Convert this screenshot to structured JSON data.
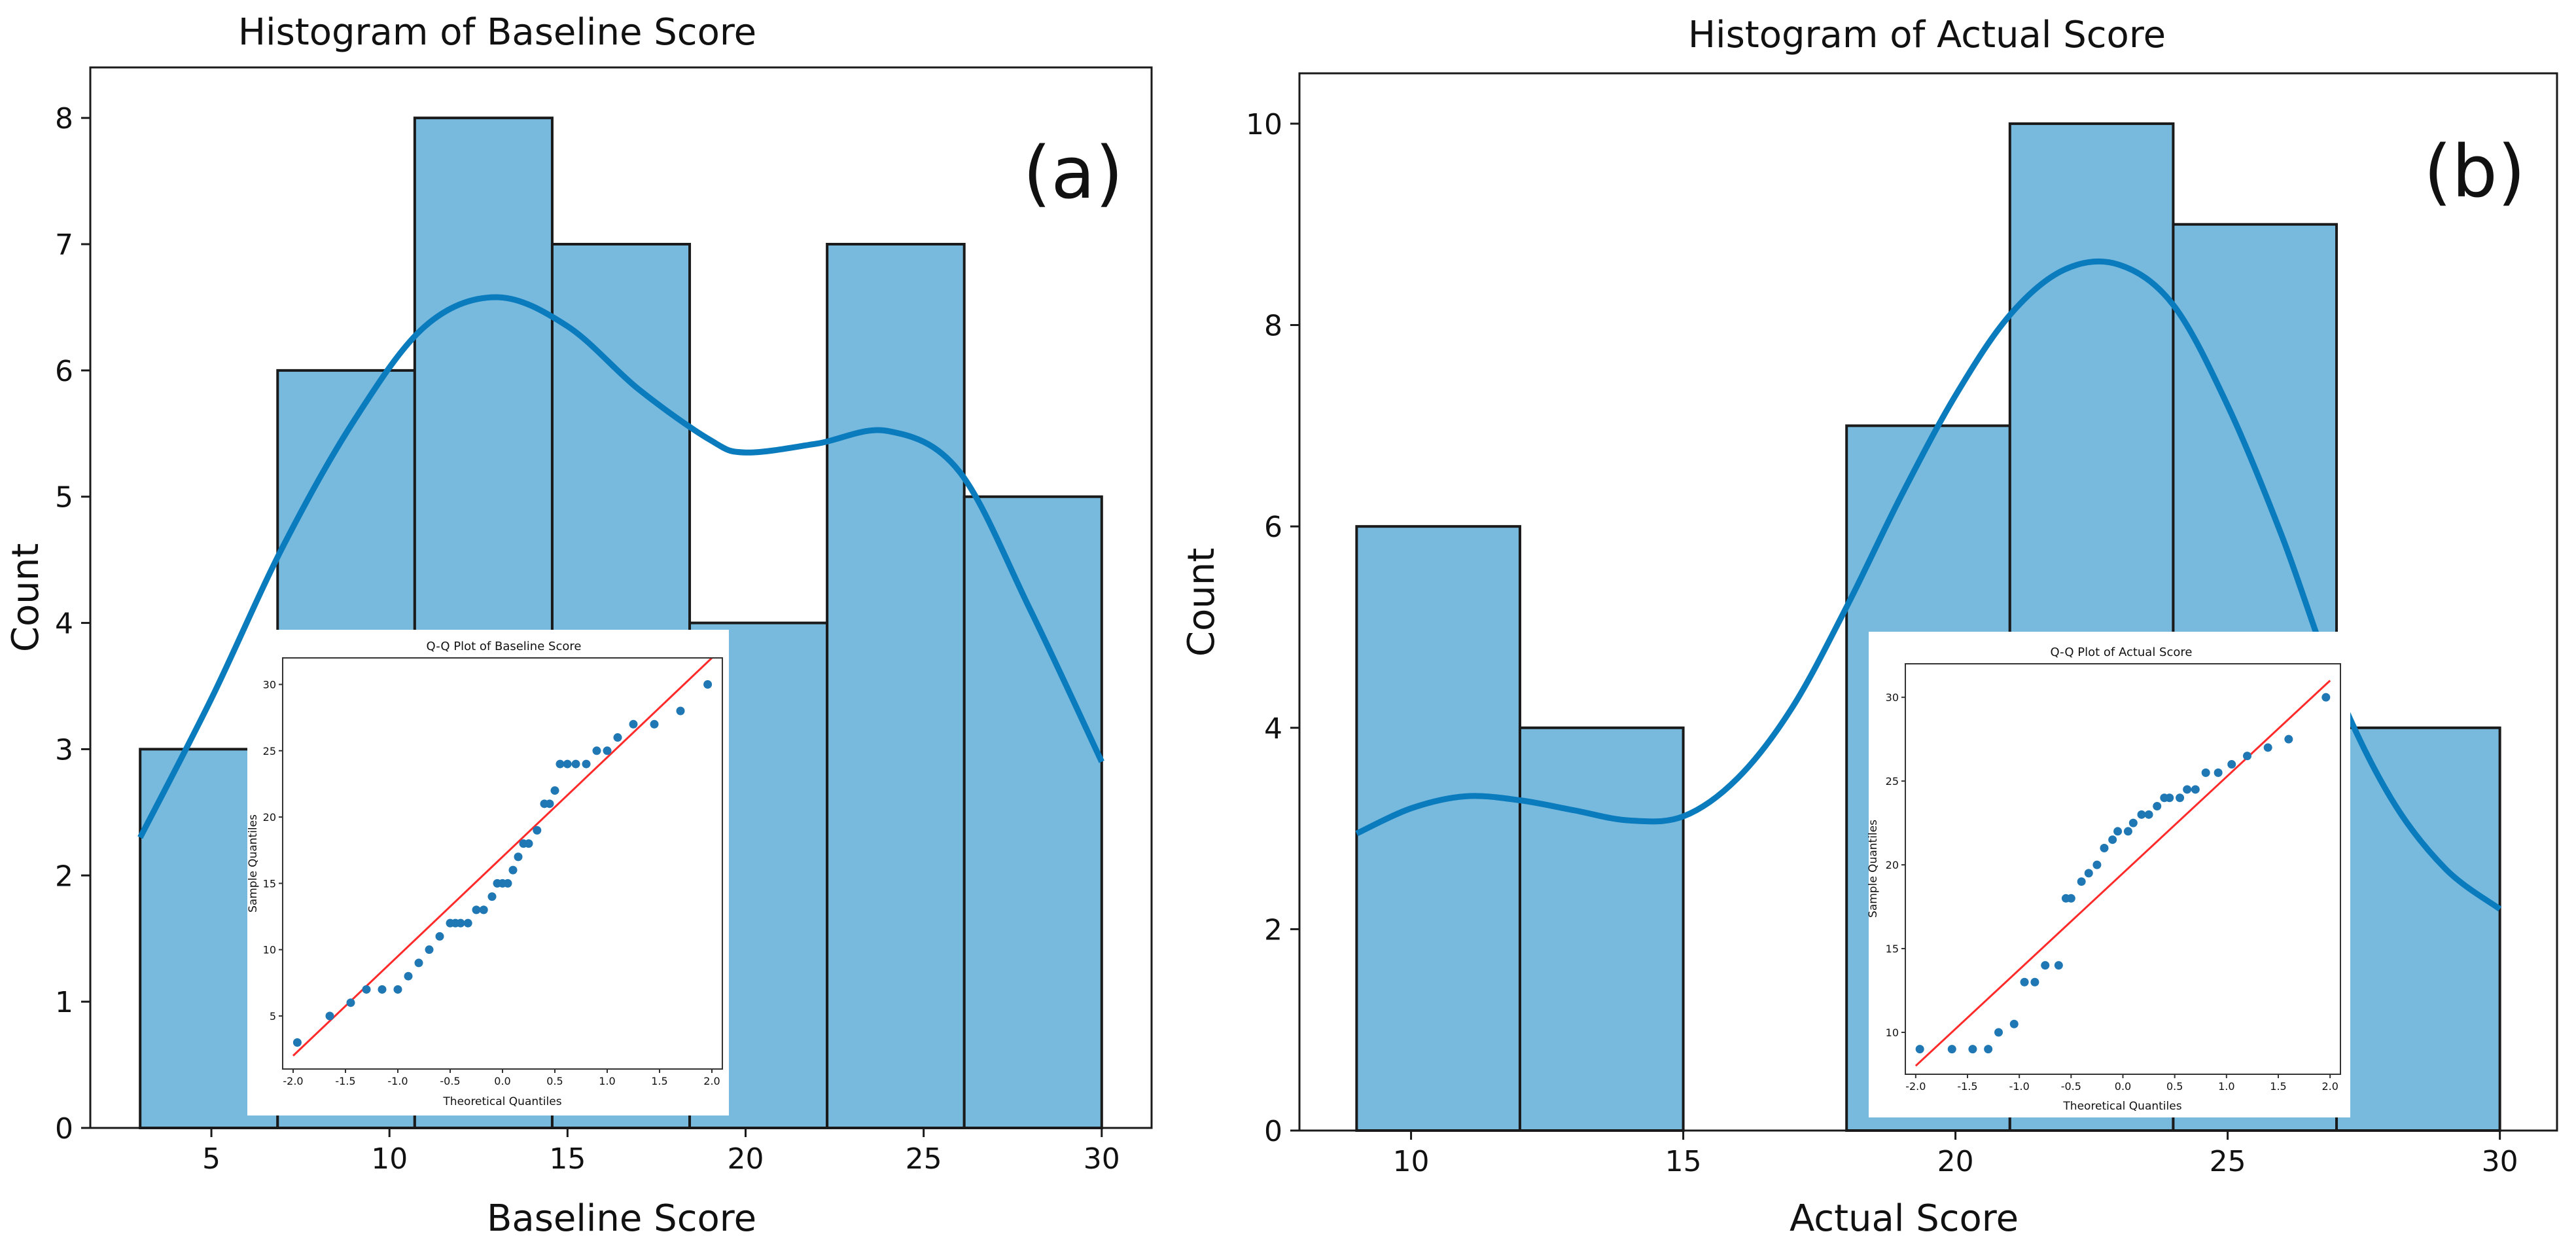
{
  "figure": {
    "description_labels": [
      "(a)",
      "(b)"
    ]
  },
  "chart_data": [
    {
      "type": "bar",
      "panel_label": "(a)",
      "title": "Histogram of Baseline Score",
      "xlabel": "Baseline Score",
      "ylabel": "Count",
      "xlim": [
        1.6,
        31.4
      ],
      "ylim": [
        0,
        8.4
      ],
      "xticks": [
        5,
        10,
        15,
        20,
        25,
        30
      ],
      "yticks": [
        0,
        1,
        2,
        3,
        4,
        5,
        6,
        7,
        8
      ],
      "bin_edges": [
        3,
        6.86,
        10.71,
        14.57,
        18.43,
        22.29,
        26.14,
        30
      ],
      "values": [
        3,
        6,
        8,
        7,
        4,
        7,
        5
      ],
      "colors": {
        "bar_fill": "#78bade",
        "bar_edge": "#1a1a1a",
        "kde": "#0a7bbd",
        "qq_line": "#ff2a2a",
        "qq_points": "#1f77b4"
      },
      "kde": {
        "x": [
          3,
          5,
          7,
          9,
          11,
          13,
          15,
          17,
          19,
          20,
          22,
          24,
          26,
          28,
          30
        ],
        "y": [
          2.3,
          3.4,
          4.6,
          5.6,
          6.35,
          6.58,
          6.35,
          5.85,
          5.45,
          5.35,
          5.42,
          5.52,
          5.2,
          4.1,
          2.9
        ]
      },
      "inset": {
        "title": "Q-Q Plot of Baseline Score",
        "xlabel": "Theoretical Quantiles",
        "ylabel": "Sample Quantiles",
        "xlim": [
          -2.1,
          2.1
        ],
        "ylim": [
          1,
          32
        ],
        "xticks": [
          -2.0,
          -1.5,
          -1.0,
          -0.5,
          0.0,
          0.5,
          1.0,
          1.5,
          2.0
        ],
        "xtick_labels": [
          "-2.0",
          "-1.5",
          "-1.0",
          "-0.5",
          "0.0",
          "0.5",
          "1.0",
          "1.5",
          "2.0"
        ],
        "yticks": [
          5,
          10,
          15,
          20,
          25,
          30
        ],
        "line": {
          "x": [
            -2.0,
            2.0
          ],
          "y": [
            2,
            32
          ]
        },
        "points": {
          "x": [
            -1.96,
            -1.65,
            -1.45,
            -1.3,
            -1.15,
            -1.0,
            -0.9,
            -0.8,
            -0.7,
            -0.6,
            -0.5,
            -0.45,
            -0.4,
            -0.33,
            -0.25,
            -0.18,
            -0.1,
            -0.05,
            0.0,
            0.05,
            0.1,
            0.15,
            0.2,
            0.25,
            0.33,
            0.4,
            0.45,
            0.5,
            0.55,
            0.62,
            0.7,
            0.8,
            0.9,
            1.0,
            1.1,
            1.25,
            1.45,
            1.7,
            1.96
          ],
          "y": [
            3,
            5,
            6,
            7,
            7,
            7,
            8,
            9,
            10,
            11,
            12,
            12,
            12,
            12,
            13,
            13,
            14,
            15,
            15,
            15,
            16,
            17,
            18,
            18,
            19,
            21,
            21,
            22,
            24,
            24,
            24,
            24,
            25,
            25,
            26,
            27,
            27,
            28,
            30
          ]
        }
      }
    },
    {
      "type": "bar",
      "panel_label": "(b)",
      "title": "Histogram of Actual Score",
      "xlabel": "Actual Score",
      "ylabel": "Count",
      "xlim": [
        7.95,
        31.05
      ],
      "ylim": [
        0,
        10.5
      ],
      "xticks": [
        10,
        15,
        20,
        25,
        30
      ],
      "yticks": [
        0,
        2,
        4,
        6,
        8,
        10
      ],
      "bin_edges": [
        9,
        12,
        15,
        18,
        21,
        24,
        27,
        30
      ],
      "values": [
        6,
        4,
        0,
        7,
        10,
        9,
        4
      ],
      "colors": {
        "bar_fill": "#78bade",
        "bar_edge": "#1a1a1a",
        "kde": "#0a7bbd",
        "qq_line": "#ff2a2a",
        "qq_points": "#1f77b4"
      },
      "kde": {
        "x": [
          9,
          10,
          11,
          12,
          13,
          14,
          15,
          16,
          17,
          18,
          19,
          20,
          21,
          22,
          23,
          24,
          25,
          26,
          27,
          28,
          29,
          30
        ],
        "y": [
          2.95,
          3.2,
          3.32,
          3.28,
          3.18,
          3.08,
          3.12,
          3.5,
          4.2,
          5.2,
          6.3,
          7.3,
          8.1,
          8.55,
          8.6,
          8.2,
          7.2,
          5.9,
          4.4,
          3.3,
          2.6,
          2.2
        ]
      },
      "inset": {
        "title": "Q-Q Plot of Actual Score",
        "xlabel": "Theoretical Quantiles",
        "ylabel": "Sample Quantiles",
        "xlim": [
          -2.1,
          2.1
        ],
        "ylim": [
          7.5,
          32
        ],
        "xticks": [
          -2.0,
          -1.5,
          -1.0,
          -0.5,
          0.0,
          0.5,
          1.0,
          1.5,
          2.0
        ],
        "xtick_labels": [
          "-2.0",
          "-1.5",
          "-1.0",
          "-0.5",
          "0.0",
          "0.5",
          "1.0",
          "1.5",
          "2.0"
        ],
        "yticks": [
          10,
          15,
          20,
          25,
          30
        ],
        "line": {
          "x": [
            -2.0,
            2.0
          ],
          "y": [
            8,
            31
          ]
        },
        "points": {
          "x": [
            -1.96,
            -1.65,
            -1.45,
            -1.3,
            -1.2,
            -1.05,
            -0.95,
            -0.85,
            -0.75,
            -0.62,
            -0.55,
            -0.5,
            -0.4,
            -0.33,
            -0.25,
            -0.18,
            -0.1,
            -0.05,
            0.05,
            0.1,
            0.18,
            0.25,
            0.33,
            0.4,
            0.45,
            0.55,
            0.62,
            0.7,
            0.8,
            0.92,
            1.05,
            1.2,
            1.4,
            1.6,
            1.96
          ],
          "y": [
            9,
            9,
            9,
            9,
            10,
            10.5,
            13,
            13,
            14,
            14,
            18,
            18,
            19,
            19.5,
            20,
            21,
            21.5,
            22,
            22,
            22.5,
            23,
            23,
            23.5,
            24,
            24,
            24,
            24.5,
            24.5,
            25.5,
            25.5,
            26,
            26.5,
            27,
            27.5,
            30
          ]
        }
      }
    }
  ]
}
